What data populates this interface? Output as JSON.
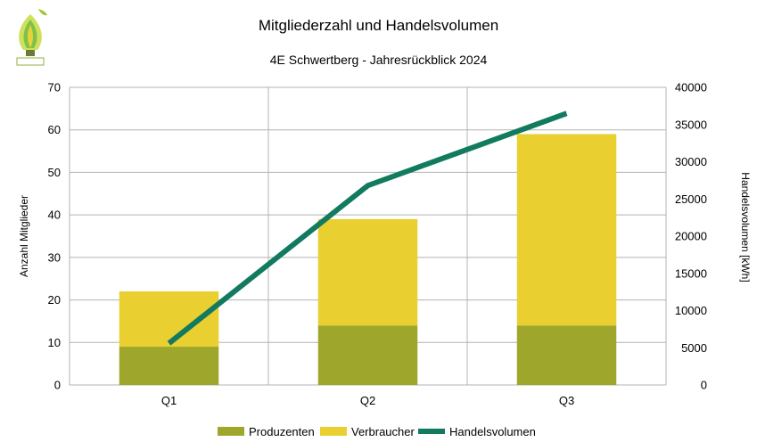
{
  "chart_data": {
    "type": "bar",
    "stacked": true,
    "title": "Mitgliederzahl und Handelsvolumen",
    "subtitle": "4E Schwertberg - Jahresrückblick 2024",
    "categories": [
      "Q1",
      "Q2",
      "Q3"
    ],
    "series": [
      {
        "name": "Produzenten",
        "type": "bar",
        "axis": "left",
        "color": "#9ea72b",
        "values": [
          9,
          14,
          14
        ]
      },
      {
        "name": "Verbraucher",
        "type": "bar",
        "axis": "left",
        "color": "#e9cf30",
        "values": [
          13,
          25,
          45
        ]
      },
      {
        "name": "Handelsvolumen",
        "type": "line",
        "axis": "right",
        "color": "#127a5f",
        "values": [
          5600,
          26800,
          36500
        ]
      }
    ],
    "ylabel": "Anzahl Mitglieder",
    "ylim": [
      0,
      70
    ],
    "yticks": [
      0,
      10,
      20,
      30,
      40,
      50,
      60,
      70
    ],
    "y2label": "Handelsvolumen [kWh]",
    "y2lim": [
      0,
      40000
    ],
    "y2ticks": [
      0,
      5000,
      10000,
      15000,
      20000,
      25000,
      30000,
      35000,
      40000
    ],
    "grid": true,
    "legend_position": "bottom"
  }
}
